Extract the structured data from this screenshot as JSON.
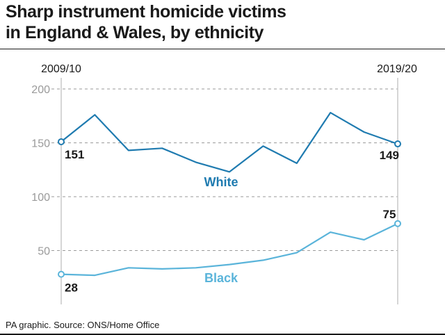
{
  "title_line1": "Sharp instrument homicide victims",
  "title_line2": "in England & Wales, by ethnicity",
  "source": "PA graphic. Source: ONS/Home Office",
  "chart_data": {
    "type": "line",
    "x_start_label": "2009/10",
    "x_end_label": "2019/20",
    "x": [
      0,
      1,
      2,
      3,
      4,
      5,
      6,
      7,
      8,
      9,
      10
    ],
    "ylim": [
      0,
      200
    ],
    "yticks": [
      50,
      100,
      150,
      200
    ],
    "grid": true,
    "series": [
      {
        "name": "White",
        "color": "#1f7bb0",
        "values": [
          151,
          176,
          143,
          145,
          132,
          123,
          147,
          131,
          178,
          160,
          149
        ],
        "start_label": "151",
        "end_label": "149"
      },
      {
        "name": "Black",
        "color": "#5ab4da",
        "values": [
          28,
          27,
          34,
          33,
          34,
          37,
          41,
          48,
          67,
          60,
          75
        ],
        "start_label": "28",
        "end_label": "75"
      }
    ]
  }
}
